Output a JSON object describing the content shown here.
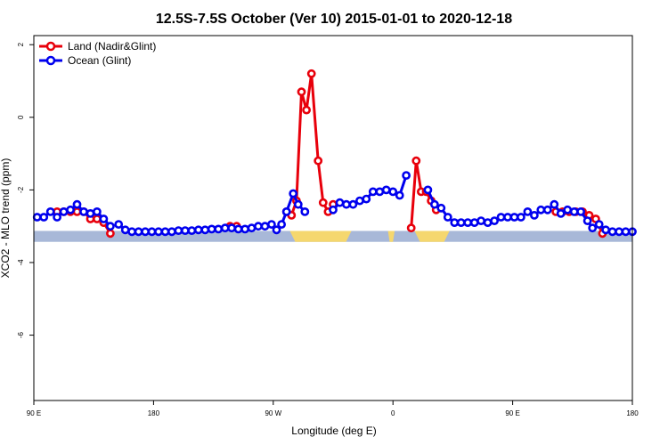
{
  "chart_data": {
    "type": "line",
    "title": "12.5S-7.5S October (Ver 10)   2015-01-01 to 2020-12-18",
    "xlabel": "Longitude (deg E)",
    "ylabel": "XCO2 - MLO trend (ppm)",
    "xlim": [
      90,
      450
    ],
    "ylim": [
      -7.8,
      2.25
    ],
    "x_ticks": [
      {
        "value": 90,
        "label": "90 E"
      },
      {
        "value": 162,
        "label": "180"
      },
      {
        "value": 234,
        "label": "90 W"
      },
      {
        "value": 306,
        "label": "0"
      },
      {
        "value": 378,
        "label": "90 E"
      },
      {
        "value": 450,
        "label": "180"
      }
    ],
    "y_ticks": [
      {
        "value": 2,
        "label": "2"
      },
      {
        "value": 0,
        "label": "0"
      },
      {
        "value": -2,
        "label": "-2"
      },
      {
        "value": -4,
        "label": "-4"
      },
      {
        "value": -6,
        "label": "-6"
      }
    ],
    "grid": false,
    "legend_position": "top-left",
    "land_band": {
      "y_top": -3.13,
      "y_bottom": -3.43,
      "ocean_color": "#a8b8d8",
      "land_color": "#f5d76e",
      "land_segments": [
        [
          244,
          281
        ],
        [
          303,
          307
        ],
        [
          319,
          340
        ]
      ]
    },
    "series": [
      {
        "name": "Land (Nadir&Glint)",
        "color": "#e8000b",
        "segments": [
          [
            [
              104,
              -2.6
            ],
            [
              108,
              -2.6
            ],
            [
              112,
              -2.6
            ],
            [
              116,
              -2.6
            ],
            [
              120,
              -2.6
            ],
            [
              124,
              -2.8
            ],
            [
              128,
              -2.8
            ],
            [
              132,
              -2.9
            ],
            [
              136,
              -3.2
            ]
          ],
          [
            [
              208,
              -3.0
            ],
            [
              212,
              -3.0
            ]
          ],
          [
            [
              242,
              -2.6
            ],
            [
              245,
              -2.7
            ],
            [
              248,
              -2.3
            ],
            [
              251,
              0.7
            ],
            [
              254,
              0.2
            ],
            [
              257,
              1.2
            ],
            [
              261,
              -1.2
            ],
            [
              264,
              -2.35
            ],
            [
              267,
              -2.6
            ],
            [
              270,
              -2.4
            ]
          ],
          [
            [
              317,
              -3.05
            ],
            [
              320,
              -1.2
            ],
            [
              323,
              -2.05
            ],
            [
              326,
              -2.05
            ],
            [
              329,
              -2.3
            ],
            [
              332,
              -2.55
            ]
          ],
          [
            [
              404,
              -2.6
            ],
            [
              408,
              -2.6
            ],
            [
              412,
              -2.6
            ],
            [
              416,
              -2.6
            ],
            [
              420,
              -2.6
            ],
            [
              424,
              -2.7
            ],
            [
              428,
              -2.8
            ],
            [
              432,
              -3.2
            ]
          ]
        ]
      },
      {
        "name": "Ocean (Glint)",
        "color": "#0000ee",
        "segments": [
          [
            [
              92,
              -2.75
            ],
            [
              96,
              -2.75
            ],
            [
              100,
              -2.6
            ],
            [
              104,
              -2.75
            ],
            [
              108,
              -2.6
            ],
            [
              112,
              -2.55
            ],
            [
              116,
              -2.4
            ],
            [
              120,
              -2.6
            ],
            [
              124,
              -2.65
            ],
            [
              128,
              -2.6
            ],
            [
              132,
              -2.8
            ],
            [
              136,
              -3.0
            ]
          ],
          [
            [
              141,
              -2.95
            ],
            [
              145,
              -3.1
            ],
            [
              149,
              -3.15
            ],
            [
              153,
              -3.15
            ],
            [
              157,
              -3.15
            ],
            [
              161,
              -3.15
            ],
            [
              165,
              -3.15
            ],
            [
              169,
              -3.15
            ],
            [
              173,
              -3.15
            ],
            [
              177,
              -3.12
            ],
            [
              181,
              -3.12
            ],
            [
              185,
              -3.12
            ],
            [
              189,
              -3.1
            ],
            [
              193,
              -3.1
            ],
            [
              197,
              -3.08
            ],
            [
              201,
              -3.08
            ],
            [
              205,
              -3.05
            ],
            [
              209,
              -3.05
            ],
            [
              213,
              -3.08
            ],
            [
              217,
              -3.08
            ],
            [
              221,
              -3.05
            ],
            [
              225,
              -3.0
            ],
            [
              229,
              -3.0
            ],
            [
              233,
              -2.95
            ],
            [
              236,
              -3.1
            ],
            [
              239,
              -2.95
            ],
            [
              242,
              -2.6
            ],
            [
              246,
              -2.1
            ],
            [
              249,
              -2.4
            ],
            [
              253,
              -2.6
            ]
          ],
          [
            [
              270,
              -2.55
            ],
            [
              274,
              -2.35
            ],
            [
              278,
              -2.4
            ],
            [
              282,
              -2.4
            ],
            [
              286,
              -2.3
            ],
            [
              290,
              -2.25
            ],
            [
              294,
              -2.05
            ],
            [
              298,
              -2.05
            ],
            [
              302,
              -2.0
            ],
            [
              306,
              -2.05
            ],
            [
              310,
              -2.15
            ],
            [
              314,
              -1.6
            ]
          ],
          [
            [
              327,
              -2.0
            ],
            [
              331,
              -2.4
            ],
            [
              335,
              -2.5
            ],
            [
              339,
              -2.75
            ],
            [
              343,
              -2.9
            ],
            [
              347,
              -2.9
            ],
            [
              351,
              -2.9
            ],
            [
              355,
              -2.9
            ],
            [
              359,
              -2.85
            ],
            [
              363,
              -2.9
            ],
            [
              367,
              -2.85
            ],
            [
              371,
              -2.75
            ],
            [
              375,
              -2.75
            ],
            [
              379,
              -2.75
            ],
            [
              383,
              -2.75
            ],
            [
              387,
              -2.6
            ],
            [
              391,
              -2.7
            ],
            [
              395,
              -2.55
            ],
            [
              399,
              -2.55
            ],
            [
              403,
              -2.4
            ],
            [
              407,
              -2.65
            ],
            [
              411,
              -2.55
            ],
            [
              415,
              -2.6
            ],
            [
              419,
              -2.6
            ],
            [
              423,
              -2.85
            ],
            [
              426,
              -3.05
            ],
            [
              430,
              -2.95
            ],
            [
              434,
              -3.1
            ],
            [
              438,
              -3.15
            ],
            [
              442,
              -3.15
            ],
            [
              446,
              -3.15
            ],
            [
              450,
              -3.15
            ]
          ]
        ]
      }
    ]
  }
}
